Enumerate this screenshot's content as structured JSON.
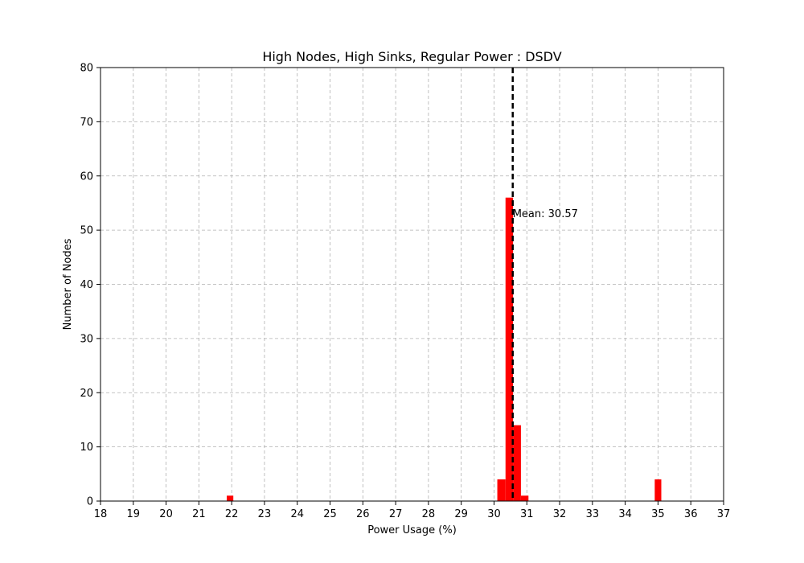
{
  "chart_data": {
    "type": "bar",
    "title": "High Nodes, High Sinks, Regular Power : DSDV",
    "xlabel": "Power Usage (%)",
    "ylabel": "Number of Nodes",
    "xlim": [
      18,
      37
    ],
    "ylim": [
      0,
      80
    ],
    "xticks": [
      18,
      19,
      20,
      21,
      22,
      23,
      24,
      25,
      26,
      27,
      28,
      29,
      30,
      31,
      32,
      33,
      34,
      35,
      36,
      37
    ],
    "yticks": [
      0,
      10,
      20,
      30,
      40,
      50,
      60,
      70,
      80
    ],
    "grid": true,
    "bar_color": "#ff0000",
    "bins": [
      {
        "start": 21.85,
        "end": 22.05,
        "count": 1
      },
      {
        "start": 30.1,
        "end": 30.35,
        "count": 4
      },
      {
        "start": 30.35,
        "end": 30.58,
        "count": 56
      },
      {
        "start": 30.58,
        "end": 30.82,
        "count": 14
      },
      {
        "start": 30.82,
        "end": 31.05,
        "count": 1
      },
      {
        "start": 34.9,
        "end": 35.1,
        "count": 4
      }
    ],
    "mean_line": {
      "value": 30.57,
      "label": "Mean: 30.57",
      "color": "#000000"
    }
  }
}
